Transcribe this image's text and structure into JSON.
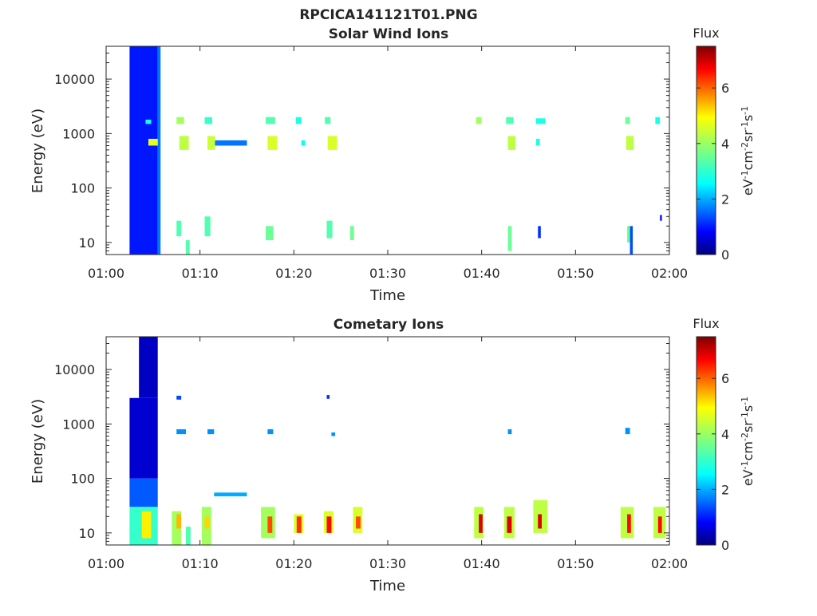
{
  "title": "RPCICA141121T01.PNG",
  "colors": {
    "background": "#ffffff",
    "axis": "#262626",
    "colormap": "jet"
  },
  "chart_data": [
    {
      "type": "heatmap",
      "title": "Solar Wind Ions",
      "xlabel": "Time",
      "ylabel": "Energy (eV)",
      "x_ticks": [
        "01:00",
        "01:10",
        "01:20",
        "01:30",
        "01:40",
        "01:50",
        "02:00"
      ],
      "x_range_minutes": [
        0,
        60
      ],
      "y_scale": "log",
      "y_ticks": [
        "10",
        "100",
        "1000",
        "10000"
      ],
      "y_range": [
        6,
        40000
      ],
      "colorbar": {
        "label": "Flux",
        "unit": "eV-1cm-2sr-1s-1",
        "ticks": [
          "0",
          "2",
          "4",
          "6"
        ],
        "range": [
          0,
          7.5
        ]
      },
      "cells": [
        {
          "t0": 2.5,
          "t1": 5.5,
          "e0": 6,
          "e1": 40000,
          "flux": 1.1
        },
        {
          "t0": 5.5,
          "t1": 5.8,
          "e0": 6,
          "e1": 40000,
          "flux": 1.8
        },
        {
          "t0": 4.5,
          "t1": 5.5,
          "e0": 600,
          "e1": 800,
          "flux": 4.5
        },
        {
          "t0": 4.2,
          "t1": 4.8,
          "e0": 1500,
          "e1": 1800,
          "flux": 3.0
        },
        {
          "t0": 7.5,
          "t1": 8.3,
          "e0": 1500,
          "e1": 2000,
          "flux": 4.0
        },
        {
          "t0": 7.8,
          "t1": 8.8,
          "e0": 500,
          "e1": 900,
          "flux": 4.2
        },
        {
          "t0": 10.5,
          "t1": 11.3,
          "e0": 1500,
          "e1": 2000,
          "flux": 3.2
        },
        {
          "t0": 10.8,
          "t1": 11.6,
          "e0": 500,
          "e1": 900,
          "flux": 4.3
        },
        {
          "t0": 11.6,
          "t1": 15.0,
          "e0": 600,
          "e1": 750,
          "flux": 1.8
        },
        {
          "t0": 17.0,
          "t1": 18.0,
          "e0": 1500,
          "e1": 2000,
          "flux": 3.4
        },
        {
          "t0": 17.2,
          "t1": 18.2,
          "e0": 500,
          "e1": 900,
          "flux": 4.4
        },
        {
          "t0": 20.2,
          "t1": 20.8,
          "e0": 1500,
          "e1": 2000,
          "flux": 3.0
        },
        {
          "t0": 20.8,
          "t1": 21.2,
          "e0": 600,
          "e1": 750,
          "flux": 2.8
        },
        {
          "t0": 23.3,
          "t1": 23.9,
          "e0": 1500,
          "e1": 2000,
          "flux": 3.4
        },
        {
          "t0": 23.6,
          "t1": 24.6,
          "e0": 500,
          "e1": 900,
          "flux": 4.4
        },
        {
          "t0": 39.4,
          "t1": 40.0,
          "e0": 1500,
          "e1": 2000,
          "flux": 4.0
        },
        {
          "t0": 42.6,
          "t1": 43.4,
          "e0": 1500,
          "e1": 2000,
          "flux": 3.4
        },
        {
          "t0": 42.8,
          "t1": 43.6,
          "e0": 500,
          "e1": 900,
          "flux": 4.2
        },
        {
          "t0": 45.8,
          "t1": 46.8,
          "e0": 1500,
          "e1": 1900,
          "flux": 3.0
        },
        {
          "t0": 45.8,
          "t1": 46.2,
          "e0": 600,
          "e1": 800,
          "flux": 3.0
        },
        {
          "t0": 55.3,
          "t1": 55.8,
          "e0": 1500,
          "e1": 2000,
          "flux": 3.6
        },
        {
          "t0": 55.4,
          "t1": 56.2,
          "e0": 500,
          "e1": 900,
          "flux": 4.2
        },
        {
          "t0": 58.5,
          "t1": 59.0,
          "e0": 1500,
          "e1": 2000,
          "flux": 3.0
        },
        {
          "t0": 7.5,
          "t1": 8.0,
          "e0": 13,
          "e1": 25,
          "flux": 3.4
        },
        {
          "t0": 8.5,
          "t1": 8.9,
          "e0": 6,
          "e1": 11,
          "flux": 3.4
        },
        {
          "t0": 10.5,
          "t1": 11.1,
          "e0": 13,
          "e1": 30,
          "flux": 3.4
        },
        {
          "t0": 17.0,
          "t1": 17.8,
          "e0": 11,
          "e1": 20,
          "flux": 3.6
        },
        {
          "t0": 23.5,
          "t1": 24.1,
          "e0": 12,
          "e1": 25,
          "flux": 3.4
        },
        {
          "t0": 26.0,
          "t1": 26.4,
          "e0": 11,
          "e1": 20,
          "flux": 3.6
        },
        {
          "t0": 42.8,
          "t1": 43.2,
          "e0": 7,
          "e1": 20,
          "flux": 3.6
        },
        {
          "t0": 46.0,
          "t1": 46.3,
          "e0": 12,
          "e1": 20,
          "flux": 1.3
        },
        {
          "t0": 55.5,
          "t1": 55.8,
          "e0": 10,
          "e1": 20,
          "flux": 3.6
        },
        {
          "t0": 55.8,
          "t1": 56.1,
          "e0": 6,
          "e1": 20,
          "flux": 1.5
        },
        {
          "t0": 59.0,
          "t1": 59.2,
          "e0": 25,
          "e1": 32,
          "flux": 1.0
        }
      ]
    },
    {
      "type": "heatmap",
      "title": "Cometary Ions",
      "xlabel": "Time",
      "ylabel": "Energy (eV)",
      "x_ticks": [
        "01:00",
        "01:10",
        "01:20",
        "01:30",
        "01:40",
        "01:50",
        "02:00"
      ],
      "x_range_minutes": [
        0,
        60
      ],
      "y_scale": "log",
      "y_ticks": [
        "10",
        "100",
        "1000",
        "10000"
      ],
      "y_range": [
        6,
        40000
      ],
      "colorbar": {
        "label": "Flux",
        "unit": "eV-1cm-2sr-1s-1",
        "ticks": [
          "0",
          "2",
          "4",
          "6"
        ],
        "range": [
          0,
          7.5
        ]
      },
      "cells": [
        {
          "t0": 2.5,
          "t1": 5.5,
          "e0": 100,
          "e1": 3000,
          "flux": 0.6
        },
        {
          "t0": 3.5,
          "t1": 5.5,
          "e0": 3000,
          "e1": 40000,
          "flux": 0.5
        },
        {
          "t0": 2.5,
          "t1": 5.5,
          "e0": 30,
          "e1": 100,
          "flux": 1.6
        },
        {
          "t0": 2.5,
          "t1": 5.5,
          "e0": 6,
          "e1": 30,
          "flux": 3.2
        },
        {
          "t0": 3.8,
          "t1": 4.8,
          "e0": 8,
          "e1": 25,
          "flux": 4.8
        },
        {
          "t0": 7.5,
          "t1": 8.5,
          "e0": 650,
          "e1": 800,
          "flux": 2.0
        },
        {
          "t0": 7.5,
          "t1": 8.0,
          "e0": 2800,
          "e1": 3300,
          "flux": 1.5
        },
        {
          "t0": 10.8,
          "t1": 11.5,
          "e0": 650,
          "e1": 800,
          "flux": 2.0
        },
        {
          "t0": 11.5,
          "t1": 15.0,
          "e0": 47,
          "e1": 55,
          "flux": 2.2
        },
        {
          "t0": 17.2,
          "t1": 17.8,
          "e0": 650,
          "e1": 800,
          "flux": 2.0
        },
        {
          "t0": 23.5,
          "t1": 23.8,
          "e0": 2900,
          "e1": 3400,
          "flux": 1.3
        },
        {
          "t0": 24.0,
          "t1": 24.4,
          "e0": 600,
          "e1": 700,
          "flux": 2.0
        },
        {
          "t0": 42.8,
          "t1": 43.2,
          "e0": 650,
          "e1": 800,
          "flux": 2.0
        },
        {
          "t0": 55.3,
          "t1": 55.8,
          "e0": 650,
          "e1": 850,
          "flux": 2.0
        },
        {
          "t0": 7.0,
          "t1": 8.0,
          "e0": 6,
          "e1": 25,
          "flux": 4.0
        },
        {
          "t0": 7.5,
          "t1": 8.0,
          "e0": 12,
          "e1": 22,
          "flux": 5.2
        },
        {
          "t0": 8.5,
          "t1": 9.0,
          "e0": 6,
          "e1": 13,
          "flux": 3.4
        },
        {
          "t0": 10.2,
          "t1": 11.2,
          "e0": 6,
          "e1": 30,
          "flux": 4.0
        },
        {
          "t0": 10.5,
          "t1": 11.0,
          "e0": 12,
          "e1": 20,
          "flux": 5.0
        },
        {
          "t0": 16.5,
          "t1": 18.0,
          "e0": 8,
          "e1": 30,
          "flux": 4.0
        },
        {
          "t0": 17.2,
          "t1": 17.7,
          "e0": 10,
          "e1": 20,
          "flux": 6.0
        },
        {
          "t0": 20.0,
          "t1": 21.0,
          "e0": 10,
          "e1": 22,
          "flux": 4.4
        },
        {
          "t0": 20.3,
          "t1": 20.8,
          "e0": 10,
          "e1": 20,
          "flux": 6.2
        },
        {
          "t0": 23.2,
          "t1": 24.2,
          "e0": 10,
          "e1": 25,
          "flux": 4.4
        },
        {
          "t0": 23.5,
          "t1": 24.0,
          "e0": 10,
          "e1": 20,
          "flux": 6.5
        },
        {
          "t0": 26.3,
          "t1": 27.3,
          "e0": 10,
          "e1": 30,
          "flux": 4.4
        },
        {
          "t0": 26.6,
          "t1": 27.1,
          "e0": 12,
          "e1": 20,
          "flux": 6.0
        },
        {
          "t0": 39.2,
          "t1": 40.2,
          "e0": 8,
          "e1": 30,
          "flux": 4.2
        },
        {
          "t0": 39.7,
          "t1": 40.1,
          "e0": 10,
          "e1": 22,
          "flux": 6.8
        },
        {
          "t0": 42.4,
          "t1": 43.5,
          "e0": 8,
          "e1": 30,
          "flux": 4.2
        },
        {
          "t0": 42.7,
          "t1": 43.2,
          "e0": 10,
          "e1": 20,
          "flux": 6.8
        },
        {
          "t0": 45.5,
          "t1": 47.0,
          "e0": 10,
          "e1": 40,
          "flux": 4.2
        },
        {
          "t0": 46.0,
          "t1": 46.4,
          "e0": 12,
          "e1": 22,
          "flux": 6.8
        },
        {
          "t0": 54.8,
          "t1": 56.2,
          "e0": 8,
          "e1": 30,
          "flux": 4.2
        },
        {
          "t0": 55.5,
          "t1": 55.9,
          "e0": 10,
          "e1": 22,
          "flux": 6.5
        },
        {
          "t0": 58.3,
          "t1": 59.6,
          "e0": 8,
          "e1": 30,
          "flux": 4.2
        },
        {
          "t0": 58.8,
          "t1": 59.2,
          "e0": 10,
          "e1": 20,
          "flux": 6.5
        }
      ]
    }
  ]
}
